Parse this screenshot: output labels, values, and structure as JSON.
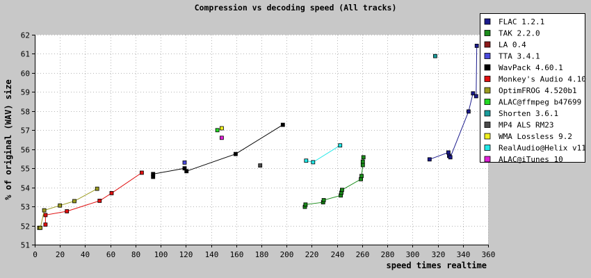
{
  "chart_data": {
    "type": "scatter",
    "title": "Compression vs decoding speed (All tracks)",
    "xlabel": "speed times realtime",
    "ylabel": "% of original (WAV) size",
    "xlim": [
      0,
      360
    ],
    "ylim": [
      51,
      62
    ],
    "x_ticks": [
      0,
      20,
      40,
      60,
      80,
      100,
      120,
      140,
      160,
      180,
      200,
      220,
      240,
      260,
      280,
      300,
      320,
      340,
      360
    ],
    "y_ticks": [
      51,
      52,
      53,
      54,
      55,
      56,
      57,
      58,
      59,
      60,
      61,
      62
    ],
    "grid": true,
    "legend_position": "top-right",
    "series": [
      {
        "name": "FLAC 1.2.1",
        "color": "#1a1a8c",
        "connected": true,
        "points": [
          [
            313.5,
            55.47
          ],
          [
            328.5,
            55.83
          ],
          [
            329,
            55.65
          ],
          [
            330,
            55.58
          ],
          [
            344.5,
            57.98
          ],
          [
            348,
            58.93
          ],
          [
            350.5,
            58.78
          ],
          [
            351,
            61.42
          ]
        ]
      },
      {
        "name": "TAK 2.2.0",
        "color": "#1a8c1a",
        "connected": true,
        "points": [
          [
            214.5,
            52.98
          ],
          [
            215,
            53.1
          ],
          [
            229,
            53.22
          ],
          [
            229.5,
            53.33
          ],
          [
            243,
            53.58
          ],
          [
            243.5,
            53.72
          ],
          [
            244,
            53.87
          ],
          [
            259,
            54.43
          ],
          [
            259.5,
            54.6
          ],
          [
            260.5,
            55.17
          ],
          [
            260.5,
            55.35
          ],
          [
            261,
            55.58
          ]
        ]
      },
      {
        "name": "LA 0.4",
        "color": "#8c1a1a",
        "connected": false,
        "points": []
      },
      {
        "name": "TTA 3.4.1",
        "color": "#4b4bdc",
        "connected": false,
        "points": [
          [
            119,
            55.3
          ]
        ]
      },
      {
        "name": "WavPack 4.60.1",
        "color": "#000000",
        "connected": true,
        "points": [
          [
            94,
            54.55
          ],
          [
            94,
            54.7
          ],
          [
            119,
            55.0
          ],
          [
            120.5,
            54.85
          ],
          [
            159.5,
            55.75
          ],
          [
            197,
            57.28
          ]
        ]
      },
      {
        "name": "Monkey's Audio 4.10",
        "color": "#e01010",
        "connected": true,
        "points": [
          [
            8.5,
            52.05
          ],
          [
            8.5,
            52.55
          ],
          [
            25.5,
            52.75
          ],
          [
            51.5,
            53.3
          ],
          [
            61,
            53.7
          ],
          [
            85,
            54.77
          ]
        ]
      },
      {
        "name": "OptimFROG 4.520b1",
        "color": "#9c9c20",
        "connected": true,
        "points": [
          [
            3.5,
            51.88
          ],
          [
            4.5,
            51.88
          ],
          [
            7.5,
            52.8
          ],
          [
            20,
            53.05
          ],
          [
            31.5,
            53.28
          ],
          [
            49.5,
            53.93
          ]
        ]
      },
      {
        "name": "ALAC@ffmpeg b47699",
        "color": "#22d822",
        "connected": false,
        "points": [
          [
            145,
            57.0
          ]
        ]
      },
      {
        "name": "Shorten 3.6.1",
        "color": "#1a9c9c",
        "connected": false,
        "points": [
          [
            318,
            60.88
          ]
        ]
      },
      {
        "name": "MP4 ALS RM23",
        "color": "#4a4a4a",
        "connected": false,
        "points": [
          [
            179,
            55.15
          ]
        ]
      },
      {
        "name": "WMA Lossless 9.2",
        "color": "#f0f020",
        "connected": false,
        "points": [
          [
            148.5,
            57.1
          ]
        ]
      },
      {
        "name": "RealAudio@Helix v11",
        "color": "#22e8e8",
        "connected": true,
        "points": [
          [
            215.5,
            55.4
          ],
          [
            221,
            55.32
          ],
          [
            242.5,
            56.2
          ]
        ]
      },
      {
        "name": "ALAC@iTunes 10",
        "color": "#e020d8",
        "connected": false,
        "points": [
          [
            148.5,
            56.6
          ]
        ]
      }
    ]
  }
}
